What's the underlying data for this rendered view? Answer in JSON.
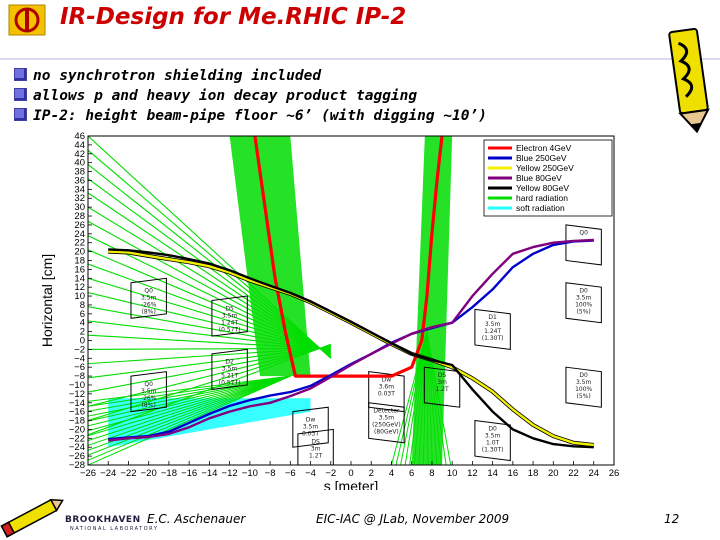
{
  "slide": {
    "title": "IR-Design for Me.RHIC IP-2",
    "bullets": [
      "no synchrotron shielding included",
      "allows p and heavy ion decay product tagging",
      "IP-2: height beam-pipe floor ~6’ (with digging ~10’)"
    ],
    "footer": {
      "author": "E.C. Aschenauer",
      "conference": "EIC-IAC @ JLab, November 2009",
      "page": "12",
      "logo_text": "BROOKHAVEN",
      "logo_subtext": "NATIONAL LABORATORY"
    }
  },
  "colors": {
    "title": "#cc0000",
    "electron": "#ff0000",
    "blue": "#0000cc",
    "yellow": "#f2f200",
    "yellow_outline": "#000000",
    "blue80": "#800080",
    "hard_radiation": "#00dd00",
    "soft_radiation": "#22ffff",
    "magnet_outline": "#000000"
  },
  "chart_data": {
    "type": "line",
    "xlabel": "s [meter]",
    "ylabel": "Horizontal [cm]",
    "xlim": [
      -26,
      26
    ],
    "ylim": [
      -28,
      46
    ],
    "xticks": [
      -26,
      -24,
      -22,
      -20,
      -18,
      -16,
      -14,
      -12,
      -10,
      -8,
      -6,
      -4,
      -2,
      0,
      2,
      4,
      6,
      8,
      10,
      12,
      14,
      16,
      18,
      20,
      22,
      24,
      26
    ],
    "yticks": [
      -28,
      -26,
      -24,
      -22,
      -20,
      -18,
      -16,
      -14,
      -12,
      -10,
      -8,
      -6,
      -4,
      -2,
      0,
      2,
      4,
      6,
      8,
      10,
      12,
      14,
      16,
      18,
      20,
      22,
      24,
      26,
      28,
      30,
      32,
      34,
      36,
      38,
      40,
      42,
      44,
      46
    ],
    "legend_position": "top-right",
    "legend": [
      {
        "label": "Electron 4GeV",
        "color": "#ff0000"
      },
      {
        "label": "Blue 250GeV",
        "color": "#0000cc"
      },
      {
        "label": "Yellow 250GeV",
        "color": "#f2f200"
      },
      {
        "label": "Blue 80GeV",
        "color": "#800080"
      },
      {
        "label": "Yellow 80GeV",
        "color": "#000000"
      },
      {
        "label": "hard radiation",
        "color": "#00dd00"
      },
      {
        "label": "soft radiation",
        "color": "#22ffff"
      }
    ],
    "series": [
      {
        "name": "Electron 4GeV",
        "color": "#ff0000",
        "x": [
          -9.5,
          -8.5,
          -7.5,
          -6.5,
          -5.5,
          -4,
          -2,
          0,
          2,
          4,
          6,
          7,
          7.5,
          8,
          8.5,
          9
        ],
        "y": [
          46,
          30,
          14,
          2,
          -8,
          -8,
          -8,
          -8,
          -8,
          -8,
          -6,
          0,
          10,
          24,
          36,
          46
        ]
      },
      {
        "name": "Blue 250GeV",
        "color": "#0000cc",
        "x": [
          -24,
          -22,
          -20,
          -18,
          -16,
          -14,
          -12,
          -10,
          -8,
          -6,
          -4,
          -2,
          0,
          2,
          4,
          6,
          8,
          10,
          12,
          14,
          16,
          18,
          20,
          22,
          24
        ],
        "y": [
          -22.2,
          -21.8,
          -21.5,
          -20.5,
          -18.5,
          -16.5,
          -14.7,
          -13.4,
          -12.4,
          -11.6,
          -10.2,
          -7.8,
          -5.3,
          -3,
          -0.5,
          1.5,
          2.8,
          4,
          7.5,
          11.5,
          16.5,
          19.5,
          21.5,
          22.3,
          22.5
        ]
      },
      {
        "name": "Yellow 250GeV",
        "color": "#f2f200",
        "outline": "#000000",
        "x": [
          -24,
          -22,
          -20,
          -18,
          -16,
          -14,
          -12,
          -10,
          -8,
          -6,
          -4,
          -2,
          0,
          2,
          4,
          6,
          8,
          10,
          12,
          14,
          16,
          18,
          20,
          22,
          24
        ],
        "y": [
          20,
          19.8,
          19,
          18.3,
          17.6,
          16.7,
          15.3,
          13.5,
          12,
          10.5,
          8.6,
          6.3,
          4,
          1.6,
          -0.8,
          -3,
          -4.4,
          -6,
          -8.5,
          -11.5,
          -15.5,
          -19,
          -21.5,
          -23,
          -23.5
        ]
      },
      {
        "name": "Blue 80GeV",
        "color": "#800080",
        "x": [
          -24,
          -22,
          -20,
          -18,
          -16,
          -14,
          -12,
          -10,
          -8,
          -6,
          -4,
          -2,
          0,
          2,
          4,
          6,
          8,
          10,
          12,
          14,
          16,
          18,
          20,
          22,
          24
        ],
        "y": [
          -22.5,
          -22,
          -21.7,
          -21,
          -19.5,
          -17.5,
          -16,
          -14.8,
          -14,
          -12.5,
          -10.8,
          -8.2,
          -5.5,
          -3,
          -0.7,
          1.5,
          3,
          4,
          10,
          15,
          19.5,
          21,
          22,
          22.4,
          22.6
        ]
      },
      {
        "name": "Yellow 80GeV",
        "color": "#000000",
        "x": [
          -24,
          -22,
          -20,
          -18,
          -16,
          -14,
          -12,
          -10,
          -8,
          -6,
          -4,
          -2,
          0,
          2,
          4,
          6,
          8,
          10,
          12,
          14,
          16,
          18,
          20,
          22,
          24
        ],
        "y": [
          20.5,
          20.3,
          19.8,
          19.2,
          18.3,
          17.3,
          15.8,
          14,
          12.3,
          10.7,
          8.8,
          6.5,
          4.2,
          1.8,
          -0.6,
          -3,
          -4.4,
          -5.5,
          -11,
          -16,
          -20,
          -22,
          -23.3,
          -23.8,
          -24
        ]
      }
    ],
    "regions": [
      {
        "name": "soft radiation",
        "color": "#22ffff",
        "x": [
          -24,
          -4
        ],
        "y": [
          -24,
          -16
        ]
      },
      {
        "name": "hard radiation fan left",
        "color": "#00dd00",
        "x": [
          -16,
          -6
        ],
        "y": [
          -28,
          46
        ]
      },
      {
        "name": "hard radiation fan right",
        "color": "#00dd00",
        "x": [
          4,
          10
        ],
        "y": [
          -28,
          46
        ]
      }
    ],
    "magnets": [
      {
        "label": [
          "Q0"
        ],
        "cx": 23,
        "cy": 22
      },
      {
        "label": [
          "Q0",
          "3.5m",
          "-26%",
          "(8%)"
        ],
        "cx": -20,
        "cy": 9
      },
      {
        "label": [
          "D5",
          "3.5m",
          "1.24T",
          "(0.57T)"
        ],
        "cx": -12,
        "cy": 5
      },
      {
        "label": [
          "D2",
          "3.5m",
          "5.21T",
          "(0.57T)"
        ],
        "cx": -12,
        "cy": -7
      },
      {
        "label": [
          "Q0",
          "3.5m",
          "-26%",
          "(8%)"
        ],
        "cx": -20,
        "cy": -12
      },
      {
        "label": [
          "Dw",
          "3.5m",
          "0.03T"
        ],
        "cx": -4,
        "cy": -20
      },
      {
        "label": [
          "DS",
          "3m",
          "1.2T"
        ],
        "cx": -3.5,
        "cy": -25
      },
      {
        "label": [
          "Detector",
          "3.5m",
          "(250GeV)",
          "(80GeV)"
        ],
        "cx": 3.5,
        "cy": -18
      },
      {
        "label": [
          "Dw",
          "3.6m",
          "0.03T"
        ],
        "cx": 3.5,
        "cy": -11
      },
      {
        "label": [
          "DS",
          "3m",
          "1.2T"
        ],
        "cx": 9,
        "cy": -10
      },
      {
        "label": [
          "D0",
          "3.5m",
          "100%",
          "(5%)"
        ],
        "cx": 23,
        "cy": 9
      },
      {
        "label": [
          "D1",
          "3.5m",
          "1.24T",
          "(1.30T)"
        ],
        "cx": 14,
        "cy": 3
      },
      {
        "label": [
          "D0",
          "3.5m",
          "100%",
          "(5%)"
        ],
        "cx": 23,
        "cy": -10
      },
      {
        "label": [
          "D0",
          "3.5m",
          "1.0T",
          "(1.30T)"
        ],
        "cx": 14,
        "cy": -22
      }
    ]
  }
}
